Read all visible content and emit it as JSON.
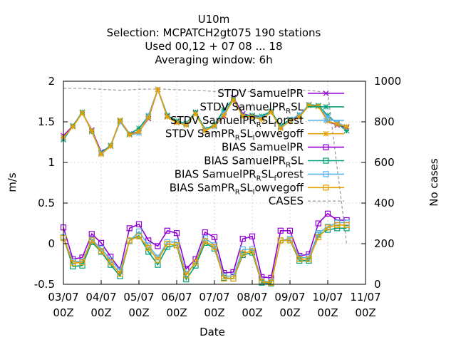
{
  "chart_data": {
    "type": "line",
    "title_lines": [
      "U10m",
      "Selection: MCPATCH2gt075     190 stations",
      "Used  00,12  + 07 08 ... 18",
      "Averaging window:  6h"
    ],
    "xlabel": "Date",
    "ylabel": "m/s",
    "y2label": "No cases",
    "xlim": [
      0,
      96
    ],
    "ylim": [
      -0.5,
      2
    ],
    "y2lim": [
      0,
      1000
    ],
    "grid": "partial dashed",
    "legend_position": "top-right",
    "x_ticks": [
      {
        "x": 0,
        "line1": "03/07",
        "line2": "00Z"
      },
      {
        "x": 12,
        "line1": "04/07",
        "line2": "00Z"
      },
      {
        "x": 24,
        "line1": "05/07",
        "line2": "00Z"
      },
      {
        "x": 36,
        "line1": "06/07",
        "line2": "00Z"
      },
      {
        "x": 48,
        "line1": "07/07",
        "line2": "00Z"
      },
      {
        "x": 60,
        "line1": "08/07",
        "line2": "00Z"
      },
      {
        "x": 72,
        "line1": "09/07",
        "line2": "00Z"
      },
      {
        "x": 84,
        "line1": "10/07",
        "line2": "00Z"
      },
      {
        "x": 96,
        "line1": "11/07",
        "line2": "00Z"
      }
    ],
    "y_ticks": [
      "-0.5",
      "0",
      "0.5",
      "1",
      "1.5",
      "2"
    ],
    "y2_ticks": [
      "0",
      "200",
      "400",
      "600",
      "800",
      "1000"
    ],
    "x": [
      0,
      3,
      6,
      9,
      12,
      15,
      18,
      21,
      24,
      27,
      30,
      33,
      36,
      39,
      42,
      45,
      48,
      51,
      54,
      57,
      60,
      63,
      66,
      69,
      72,
      75,
      78,
      81,
      84,
      87,
      90
    ],
    "series": [
      {
        "legend": [
          "STDV SamuelPR"
        ],
        "color": "#9400d3",
        "marker": "x",
        "values": [
          1.33,
          1.45,
          1.61,
          1.4,
          1.13,
          1.2,
          1.52,
          1.35,
          1.38,
          1.54,
          1.9,
          1.57,
          1.5,
          1.48,
          1.61,
          1.4,
          1.45,
          1.57,
          1.8,
          1.6,
          1.57,
          1.55,
          1.63,
          1.44,
          1.53,
          1.56,
          1.71,
          1.7,
          1.51,
          1.46,
          1.43
        ]
      },
      {
        "legend": [
          "STDV SamuelPR",
          "R",
          "SL"
        ],
        "color": "#009e73",
        "marker": "star",
        "values": [
          1.28,
          1.45,
          1.62,
          1.38,
          1.12,
          1.21,
          1.51,
          1.35,
          1.42,
          1.57,
          1.9,
          1.58,
          1.51,
          1.48,
          1.62,
          1.41,
          1.46,
          1.65,
          1.78,
          1.58,
          1.58,
          1.57,
          1.63,
          1.45,
          1.53,
          1.58,
          1.71,
          1.7,
          1.58,
          1.48,
          1.39
        ]
      },
      {
        "legend": [
          "STDV SamuelPR",
          "R",
          "SL",
          "f",
          "orest"
        ],
        "color": "#56b4e9",
        "marker": "star",
        "values": [
          1.3,
          1.44,
          1.61,
          1.39,
          1.11,
          1.2,
          1.5,
          1.34,
          1.36,
          1.58,
          1.9,
          1.56,
          1.49,
          1.47,
          1.6,
          1.4,
          1.44,
          1.61,
          1.77,
          1.57,
          1.56,
          1.55,
          1.62,
          1.43,
          1.52,
          1.59,
          1.7,
          1.69,
          1.56,
          1.49,
          1.44
        ]
      },
      {
        "legend": [
          "STDV SamPR",
          "R",
          "SL",
          "l",
          "owvegoff"
        ],
        "color": "#e69f00",
        "marker": "star",
        "values": [
          1.31,
          1.44,
          1.61,
          1.39,
          1.1,
          1.2,
          1.52,
          1.34,
          1.38,
          1.55,
          1.9,
          1.56,
          1.49,
          1.46,
          1.6,
          1.39,
          1.45,
          1.58,
          1.77,
          1.57,
          1.56,
          1.53,
          1.62,
          1.42,
          1.51,
          1.56,
          1.7,
          1.69,
          1.51,
          1.47,
          1.44
        ]
      },
      {
        "legend": [
          "BIAS SamuelPR"
        ],
        "color": "#9400d3",
        "marker": "square",
        "values": [
          0.2,
          -0.19,
          -0.17,
          0.12,
          0.01,
          -0.16,
          -0.32,
          0.19,
          0.24,
          0.04,
          -0.03,
          0.16,
          0.13,
          -0.31,
          -0.19,
          0.14,
          0.08,
          -0.36,
          -0.35,
          0.06,
          0.09,
          -0.41,
          -0.42,
          0.16,
          0.16,
          -0.15,
          -0.13,
          0.25,
          0.37,
          0.29,
          0.29
        ]
      },
      {
        "legend": [
          "BIAS SamuelPR",
          "R",
          "SL"
        ],
        "color": "#009e73",
        "marker": "square",
        "values": [
          0.08,
          -0.28,
          -0.27,
          0.02,
          -0.1,
          -0.26,
          -0.4,
          0.04,
          0.1,
          -0.1,
          -0.26,
          -0.04,
          -0.02,
          -0.44,
          -0.27,
          0.01,
          -0.06,
          -0.42,
          -0.43,
          -0.14,
          -0.11,
          -0.48,
          -0.49,
          0.04,
          0.04,
          -0.21,
          -0.21,
          0.11,
          0.17,
          0.19,
          0.19
        ]
      },
      {
        "legend": [
          "BIAS SamuelPR",
          "R",
          "SL",
          "f",
          "orest"
        ],
        "color": "#56b4e9",
        "marker": "square",
        "values": [
          0.08,
          -0.22,
          -0.22,
          0.05,
          -0.06,
          -0.2,
          -0.33,
          0.03,
          0.15,
          -0.02,
          -0.17,
          0.02,
          0.02,
          -0.37,
          -0.23,
          0.07,
          -0.02,
          -0.4,
          -0.4,
          -0.07,
          -0.07,
          -0.46,
          -0.47,
          0.04,
          0.06,
          -0.17,
          -0.17,
          0.13,
          0.21,
          0.26,
          0.26
        ]
      },
      {
        "legend": [
          "BIAS SamPR",
          "R",
          "SL",
          "l",
          "owvegoff"
        ],
        "color": "#e69f00",
        "marker": "square",
        "values": [
          0.07,
          -0.24,
          -0.23,
          0.04,
          -0.09,
          -0.23,
          -0.37,
          0.04,
          0.09,
          -0.05,
          -0.2,
          0.0,
          -0.02,
          -0.39,
          -0.23,
          0.03,
          -0.04,
          -0.43,
          -0.43,
          -0.12,
          -0.09,
          -0.47,
          -0.48,
          0.04,
          0.04,
          -0.19,
          -0.19,
          0.08,
          0.2,
          0.23,
          0.23
        ]
      }
    ],
    "cases": {
      "legend": [
        "CASES"
      ],
      "color": "#a0a0a0",
      "axis": "y2",
      "x": [
        0,
        6,
        12,
        18,
        24,
        30,
        36,
        42,
        48,
        54,
        60,
        66,
        72,
        78,
        84,
        90
      ],
      "values": [
        965,
        965,
        960,
        955,
        960,
        962,
        958,
        955,
        950,
        955,
        948,
        950,
        955,
        955,
        945,
        200
      ]
    }
  }
}
